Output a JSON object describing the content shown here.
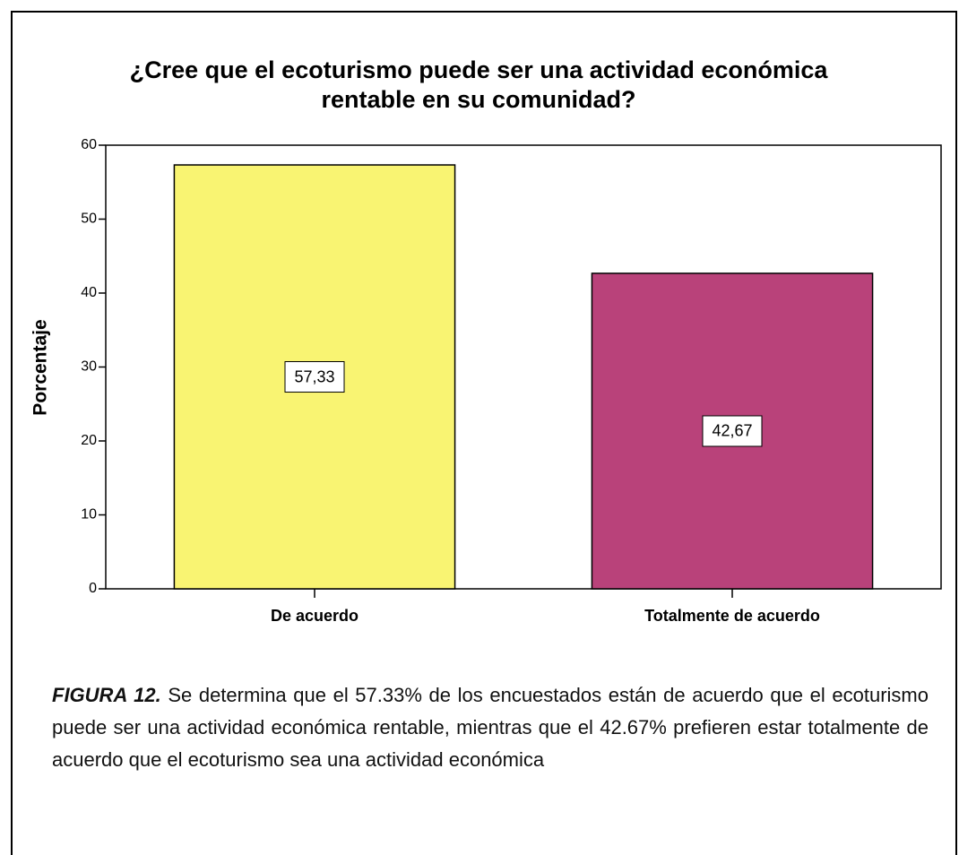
{
  "chart_data": {
    "type": "bar",
    "title": [
      "¿Cree que el ecoturismo puede ser una actividad económica",
      "rentable en su comunidad?"
    ],
    "y_label": "Porcentaje",
    "categories": [
      "De acuerdo",
      "Totalmente de acuerdo"
    ],
    "values": [
      57.33,
      42.67
    ],
    "value_labels": [
      "57,33",
      "42,67"
    ],
    "colors": [
      "#f9f472",
      "#b9427a"
    ],
    "ylim": [
      0,
      60
    ],
    "yticks": [
      0,
      10,
      20,
      30,
      40,
      50,
      60
    ]
  },
  "caption": {
    "label": "FIGURA 12.",
    "text": "Se determina que el 57.33% de los encuestados están de acuerdo que el ecoturismo puede ser una actividad económica rentable, mientras que el 42.67% prefieren estar totalmente de acuerdo que el ecoturismo sea una actividad económica"
  }
}
